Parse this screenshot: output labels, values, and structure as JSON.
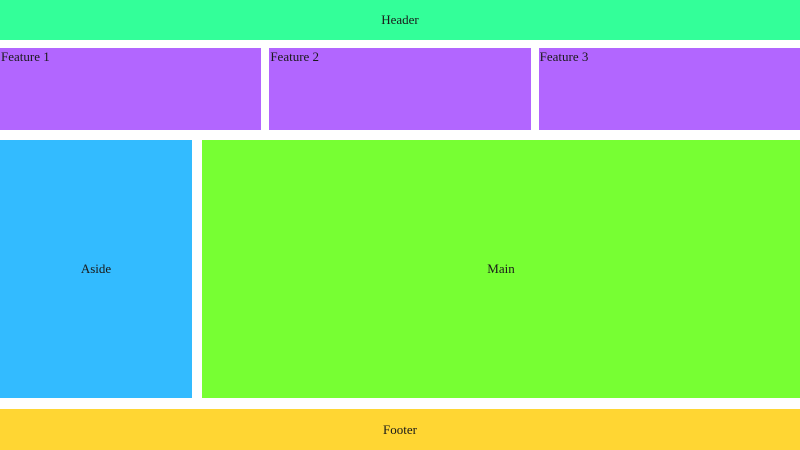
{
  "header": {
    "label": "Header",
    "bg_color": "#33ff99"
  },
  "features": {
    "bg_color": "#b266ff",
    "items": [
      {
        "label": "Feature 1"
      },
      {
        "label": "Feature 2"
      },
      {
        "label": "Feature 3"
      }
    ]
  },
  "aside": {
    "label": "Aside",
    "bg_color": "#33bbff"
  },
  "main": {
    "label": "Main",
    "bg_color": "#77ff33"
  },
  "footer": {
    "label": "Footer",
    "bg_color": "#ffd633"
  },
  "text_color": "#1a1a1a",
  "page_bg_color": "#ffffff"
}
